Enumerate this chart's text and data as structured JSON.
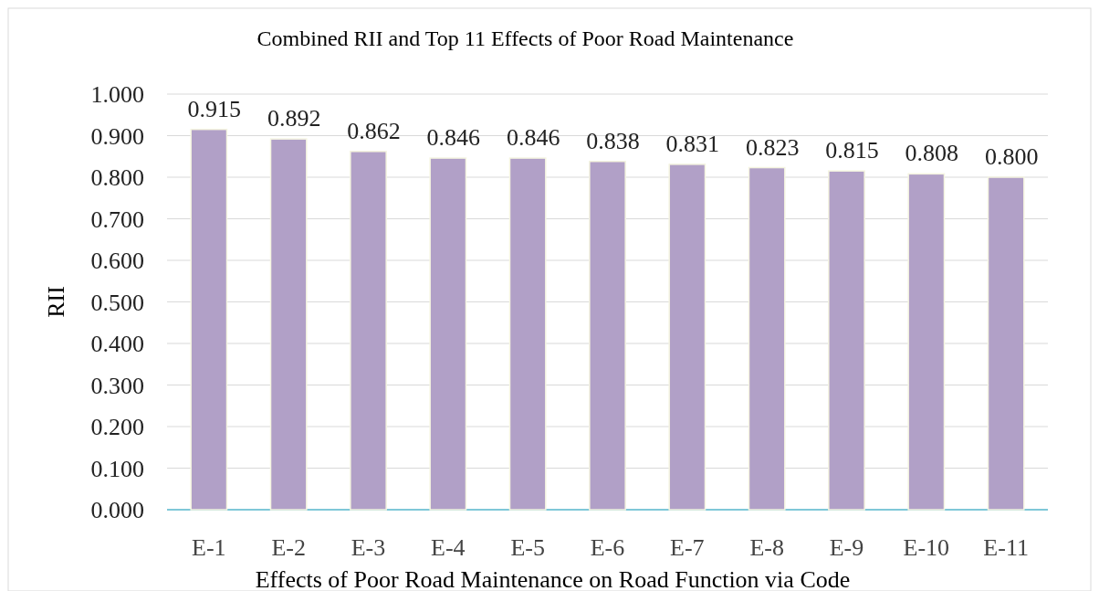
{
  "chart_data": {
    "type": "bar",
    "title": "Combined RII and Top 11 Effects of Poor Road Maintenance",
    "xlabel": "Effects of Poor Road Maintenance on Road Function via Code",
    "ylabel": "RII",
    "categories": [
      "E-1",
      "E-2",
      "E-3",
      "E-4",
      "E-5",
      "E-6",
      "E-7",
      "E-8",
      "E-9",
      "E-10",
      "E-11"
    ],
    "values": [
      0.915,
      0.892,
      0.862,
      0.846,
      0.846,
      0.838,
      0.831,
      0.823,
      0.815,
      0.808,
      0.8
    ],
    "value_labels": [
      "0.915",
      "0.892",
      "0.862",
      "0.846",
      "0.846",
      "0.838",
      "0.831",
      "0.823",
      "0.815",
      "0.808",
      "0.800"
    ],
    "color": "#b1a0c7",
    "ylim": [
      0,
      1
    ],
    "yticks": [
      {
        "value": 0,
        "label": "0.000"
      },
      {
        "value": 0.1,
        "label": "0.100"
      },
      {
        "value": 0.2,
        "label": "0.200"
      },
      {
        "value": 0.3,
        "label": "0.300"
      },
      {
        "value": 0.4,
        "label": "0.400"
      },
      {
        "value": 0.5,
        "label": "0.500"
      },
      {
        "value": 0.6,
        "label": "0.600"
      },
      {
        "value": 0.7,
        "label": "0.700"
      },
      {
        "value": 0.8,
        "label": "0.800"
      },
      {
        "value": 0.9,
        "label": "0.900"
      },
      {
        "value": 1,
        "label": "1.000"
      }
    ],
    "grid": "y"
  }
}
